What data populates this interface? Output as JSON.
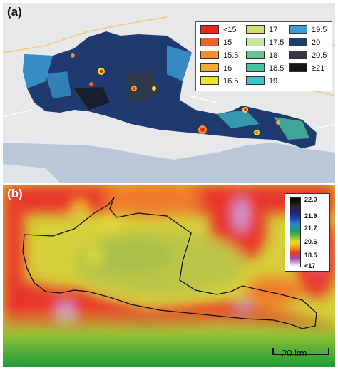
{
  "panel_a": {
    "label": "(a)",
    "legend": [
      {
        "label": "<15",
        "color": "#e8241c"
      },
      {
        "label": "15",
        "color": "#f0622a"
      },
      {
        "label": "15.5",
        "color": "#f58c2e"
      },
      {
        "label": "16",
        "color": "#f3a838"
      },
      {
        "label": "16.5",
        "color": "#efe21e"
      },
      {
        "label": "17",
        "color": "#d3e06c"
      },
      {
        "label": "17.5",
        "color": "#c7e5a0"
      },
      {
        "label": "18",
        "color": "#66c490"
      },
      {
        "label": "18.5",
        "color": "#48c2a3"
      },
      {
        "label": "19",
        "color": "#3fc2c9"
      },
      {
        "label": "19.5",
        "color": "#3b9ed4"
      },
      {
        "label": "20",
        "color": "#1e3a6e"
      },
      {
        "label": "20.5",
        "color": "#333a44"
      },
      {
        "label": "≥21",
        "color": "#141414"
      }
    ]
  },
  "panel_b": {
    "label": "(b)",
    "colorbar_ticks": [
      "22.0",
      "21.9",
      "21.7",
      "20.6",
      "18.5",
      "<17"
    ],
    "scale_bar_label": "20 km"
  }
}
